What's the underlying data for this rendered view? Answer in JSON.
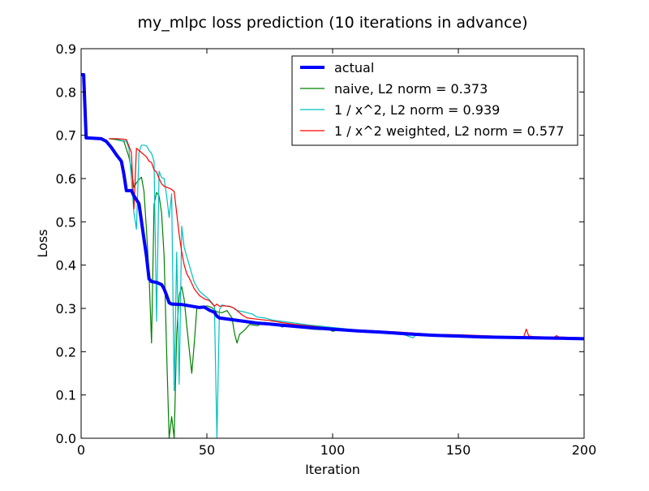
{
  "chart_data": {
    "type": "line",
    "title": "my_mlpc loss prediction (10 iterations in advance)",
    "xlabel": "Iteration",
    "ylabel": "Loss",
    "xlim": [
      0,
      200
    ],
    "ylim": [
      0.0,
      0.9
    ],
    "xticks": [
      0,
      50,
      100,
      150,
      200
    ],
    "xtick_labels": [
      "0",
      "50",
      "100",
      "150",
      "200"
    ],
    "yticks": [
      0.0,
      0.1,
      0.2,
      0.3,
      0.4,
      0.5,
      0.6,
      0.7,
      0.8,
      0.9
    ],
    "ytick_labels": [
      "0.0",
      "0.1",
      "0.2",
      "0.3",
      "0.4",
      "0.5",
      "0.6",
      "0.7",
      "0.8",
      "0.9"
    ],
    "grid": false,
    "legend_position": "top-right",
    "series": [
      {
        "name": "actual",
        "color": "#0000ff",
        "width": 4,
        "points": [
          [
            0,
            0.84
          ],
          [
            1,
            0.84
          ],
          [
            2,
            0.694
          ],
          [
            5,
            0.693
          ],
          [
            8,
            0.692
          ],
          [
            10,
            0.686
          ],
          [
            12,
            0.672
          ],
          [
            14,
            0.655
          ],
          [
            16,
            0.64
          ],
          [
            17,
            0.61
          ],
          [
            18,
            0.572
          ],
          [
            20,
            0.572
          ],
          [
            21,
            0.56
          ],
          [
            23,
            0.542
          ],
          [
            25,
            0.46
          ],
          [
            26,
            0.42
          ],
          [
            27,
            0.368
          ],
          [
            28,
            0.362
          ],
          [
            30,
            0.36
          ],
          [
            32,
            0.355
          ],
          [
            33,
            0.345
          ],
          [
            34,
            0.33
          ],
          [
            35,
            0.313
          ],
          [
            36,
            0.31
          ],
          [
            40,
            0.309
          ],
          [
            44,
            0.305
          ],
          [
            47,
            0.302
          ],
          [
            49,
            0.303
          ],
          [
            51,
            0.296
          ],
          [
            53,
            0.291
          ],
          [
            54,
            0.282
          ],
          [
            55,
            0.278
          ],
          [
            60,
            0.274
          ],
          [
            65,
            0.27
          ],
          [
            70,
            0.266
          ],
          [
            75,
            0.264
          ],
          [
            80,
            0.261
          ],
          [
            90,
            0.256
          ],
          [
            100,
            0.252
          ],
          [
            110,
            0.248
          ],
          [
            120,
            0.245
          ],
          [
            130,
            0.241
          ],
          [
            140,
            0.238
          ],
          [
            150,
            0.236
          ],
          [
            160,
            0.234
          ],
          [
            170,
            0.233
          ],
          [
            180,
            0.232
          ],
          [
            190,
            0.231
          ],
          [
            200,
            0.23
          ]
        ]
      },
      {
        "name": "naive, L2 norm = 0.373",
        "color": "#008000",
        "width": 1.2,
        "points": [
          [
            11,
            0.692
          ],
          [
            14,
            0.69
          ],
          [
            17,
            0.686
          ],
          [
            19,
            0.65
          ],
          [
            20,
            0.622
          ],
          [
            21,
            0.58
          ],
          [
            22,
            0.59
          ],
          [
            23,
            0.598
          ],
          [
            24,
            0.603
          ],
          [
            25,
            0.57
          ],
          [
            26,
            0.48
          ],
          [
            27,
            0.38
          ],
          [
            28,
            0.22
          ],
          [
            29,
            0.54
          ],
          [
            30,
            0.568
          ],
          [
            31,
            0.56
          ],
          [
            32,
            0.52
          ],
          [
            33,
            0.42
          ],
          [
            34,
            0.2
          ],
          [
            35,
            0.0
          ],
          [
            36,
            0.05
          ],
          [
            37,
            0.0
          ],
          [
            38,
            0.24
          ],
          [
            39,
            0.33
          ],
          [
            40,
            0.35
          ],
          [
            41,
            0.32
          ],
          [
            42,
            0.26
          ],
          [
            44,
            0.15
          ],
          [
            45,
            0.22
          ],
          [
            46,
            0.3
          ],
          [
            47,
            0.303
          ],
          [
            48,
            0.3
          ],
          [
            50,
            0.306
          ],
          [
            52,
            0.302
          ],
          [
            54,
            0.292
          ],
          [
            56,
            0.29
          ],
          [
            58,
            0.295
          ],
          [
            60,
            0.278
          ],
          [
            61,
            0.242
          ],
          [
            62,
            0.22
          ],
          [
            63,
            0.24
          ],
          [
            65,
            0.25
          ],
          [
            67,
            0.263
          ],
          [
            70,
            0.26
          ],
          [
            73,
            0.268
          ],
          [
            75,
            0.265
          ],
          [
            78,
            0.262
          ],
          [
            80,
            0.257
          ],
          [
            82,
            0.26
          ],
          [
            85,
            0.258
          ],
          [
            88,
            0.255
          ],
          [
            92,
            0.252
          ],
          [
            95,
            0.251
          ],
          [
            98,
            0.253
          ],
          [
            100,
            0.247
          ],
          [
            103,
            0.251
          ],
          [
            106,
            0.248
          ],
          [
            110,
            0.247
          ],
          [
            115,
            0.244
          ],
          [
            120,
            0.245
          ],
          [
            125,
            0.242
          ],
          [
            128,
            0.242
          ],
          [
            131,
            0.239
          ],
          [
            133,
            0.241
          ],
          [
            135,
            0.239
          ],
          [
            140,
            0.239
          ],
          [
            150,
            0.237
          ],
          [
            160,
            0.235
          ],
          [
            170,
            0.233
          ],
          [
            180,
            0.232
          ],
          [
            190,
            0.231
          ],
          [
            200,
            0.23
          ]
        ]
      },
      {
        "name": "1 / x^2, L2 norm = 0.939",
        "color": "#00bfbf",
        "width": 1.2,
        "points": [
          [
            11,
            0.692
          ],
          [
            14,
            0.692
          ],
          [
            16,
            0.688
          ],
          [
            18,
            0.686
          ],
          [
            19,
            0.67
          ],
          [
            20,
            0.6
          ],
          [
            21,
            0.52
          ],
          [
            22,
            0.483
          ],
          [
            23,
            0.66
          ],
          [
            24,
            0.677
          ],
          [
            25,
            0.677
          ],
          [
            26,
            0.676
          ],
          [
            27,
            0.665
          ],
          [
            28,
            0.658
          ],
          [
            29,
            0.64
          ],
          [
            30,
            0.27
          ],
          [
            31,
            0.617
          ],
          [
            32,
            0.602
          ],
          [
            33,
            0.6
          ],
          [
            34,
            0.56
          ],
          [
            35,
            0.51
          ],
          [
            36,
            0.565
          ],
          [
            37,
            0.11
          ],
          [
            38,
            0.43
          ],
          [
            39,
            0.125
          ],
          [
            40,
            0.49
          ],
          [
            41,
            0.44
          ],
          [
            43,
            0.4
          ],
          [
            45,
            0.36
          ],
          [
            47,
            0.34
          ],
          [
            49,
            0.33
          ],
          [
            51,
            0.32
          ],
          [
            53,
            0.306
          ],
          [
            54,
            0.0
          ],
          [
            55,
            0.297
          ],
          [
            56,
            0.308
          ],
          [
            58,
            0.305
          ],
          [
            60,
            0.303
          ],
          [
            62,
            0.295
          ],
          [
            64,
            0.293
          ],
          [
            66,
            0.29
          ],
          [
            68,
            0.287
          ],
          [
            70,
            0.28
          ],
          [
            73,
            0.278
          ],
          [
            76,
            0.273
          ],
          [
            80,
            0.27
          ],
          [
            85,
            0.266
          ],
          [
            90,
            0.262
          ],
          [
            95,
            0.259
          ],
          [
            100,
            0.256
          ],
          [
            105,
            0.253
          ],
          [
            110,
            0.25
          ],
          [
            115,
            0.248
          ],
          [
            120,
            0.245
          ],
          [
            125,
            0.243
          ],
          [
            128,
            0.24
          ],
          [
            130,
            0.236
          ],
          [
            132,
            0.232
          ],
          [
            133,
            0.238
          ],
          [
            135,
            0.238
          ],
          [
            140,
            0.24
          ],
          [
            150,
            0.238
          ],
          [
            160,
            0.236
          ],
          [
            170,
            0.234
          ],
          [
            180,
            0.233
          ],
          [
            190,
            0.232
          ],
          [
            200,
            0.231
          ]
        ]
      },
      {
        "name": "1 / x^2 weighted, L2 norm = 0.577",
        "color": "#ff0000",
        "width": 1.2,
        "points": [
          [
            11,
            0.692
          ],
          [
            15,
            0.692
          ],
          [
            18,
            0.69
          ],
          [
            20,
            0.66
          ],
          [
            21,
            0.53
          ],
          [
            22,
            0.67
          ],
          [
            24,
            0.66
          ],
          [
            26,
            0.65
          ],
          [
            27,
            0.64
          ],
          [
            28,
            0.637
          ],
          [
            29,
            0.62
          ],
          [
            30,
            0.615
          ],
          [
            31,
            0.6
          ],
          [
            32,
            0.588
          ],
          [
            33,
            0.582
          ],
          [
            34,
            0.58
          ],
          [
            36,
            0.575
          ],
          [
            37,
            0.57
          ],
          [
            38,
            0.52
          ],
          [
            39,
            0.47
          ],
          [
            40,
            0.43
          ],
          [
            41,
            0.4
          ],
          [
            42,
            0.38
          ],
          [
            43,
            0.37
          ],
          [
            45,
            0.345
          ],
          [
            47,
            0.33
          ],
          [
            49,
            0.322
          ],
          [
            51,
            0.318
          ],
          [
            53,
            0.305
          ],
          [
            54,
            0.31
          ],
          [
            55,
            0.305
          ],
          [
            57,
            0.306
          ],
          [
            59,
            0.305
          ],
          [
            61,
            0.3
          ],
          [
            64,
            0.285
          ],
          [
            66,
            0.278
          ],
          [
            70,
            0.275
          ],
          [
            75,
            0.272
          ],
          [
            80,
            0.267
          ],
          [
            85,
            0.263
          ],
          [
            90,
            0.26
          ],
          [
            95,
            0.257
          ],
          [
            100,
            0.254
          ],
          [
            105,
            0.252
          ],
          [
            110,
            0.25
          ],
          [
            115,
            0.249
          ],
          [
            120,
            0.247
          ],
          [
            125,
            0.246
          ],
          [
            130,
            0.244
          ],
          [
            135,
            0.242
          ],
          [
            140,
            0.24
          ],
          [
            150,
            0.239
          ],
          [
            160,
            0.237
          ],
          [
            170,
            0.235
          ],
          [
            176,
            0.234
          ],
          [
            177,
            0.252
          ],
          [
            178,
            0.236
          ],
          [
            180,
            0.235
          ],
          [
            185,
            0.234
          ],
          [
            188,
            0.233
          ],
          [
            189,
            0.237
          ],
          [
            190,
            0.234
          ],
          [
            195,
            0.233
          ],
          [
            200,
            0.232
          ]
        ]
      }
    ]
  }
}
